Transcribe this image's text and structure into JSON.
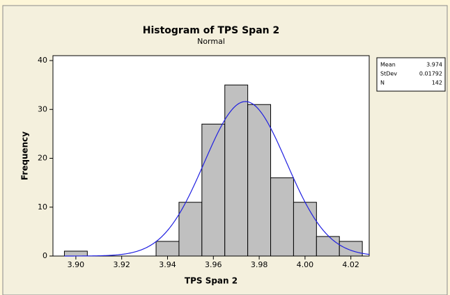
{
  "chart_data": {
    "type": "histogram",
    "title": "Histogram of TPS Span 2",
    "subtitle": "Normal",
    "x_label": "TPS Span 2",
    "y_label": "Frequency",
    "bins": [
      3.895,
      3.905,
      3.915,
      3.925,
      3.935,
      3.945,
      3.955,
      3.965,
      3.975,
      3.985,
      3.995,
      4.005,
      4.015,
      4.025
    ],
    "values": [
      1,
      0,
      0,
      0,
      3,
      11,
      27,
      35,
      31,
      16,
      11,
      4,
      3
    ],
    "color": "#c0c0c0",
    "curve_color": "#1f1fe0",
    "xlim": [
      3.89,
      4.028
    ],
    "ylim": [
      0,
      41
    ],
    "xticks": [
      {
        "value": 3.9,
        "label": "3.90"
      },
      {
        "value": 3.92,
        "label": "3.92"
      },
      {
        "value": 3.94,
        "label": "3.94"
      },
      {
        "value": 3.96,
        "label": "3.96"
      },
      {
        "value": 3.98,
        "label": "3.98"
      },
      {
        "value": 4.0,
        "label": "4.00"
      },
      {
        "value": 4.02,
        "label": "4.02"
      }
    ],
    "yticks": [
      0,
      10,
      20,
      30,
      40
    ],
    "stats": [
      {
        "name": "Mean",
        "value": 3.974
      },
      {
        "name": "StDev",
        "value": 0.01792
      },
      {
        "name": "N",
        "value": 142
      }
    ]
  }
}
